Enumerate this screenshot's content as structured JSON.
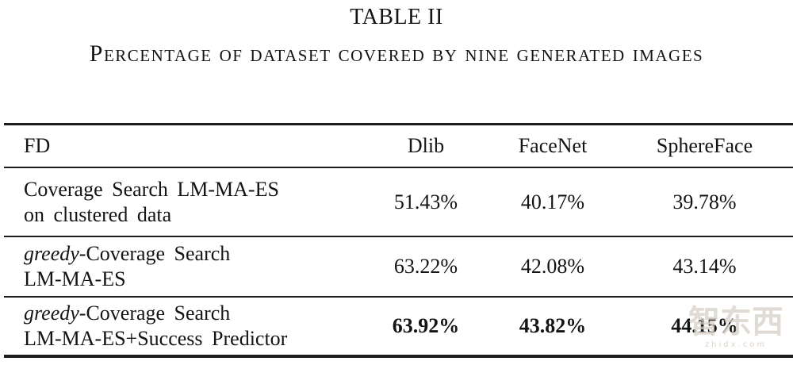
{
  "caption": {
    "title": "TABLE II",
    "subtitle": "Percentage of dataset covered by nine generated images"
  },
  "table": {
    "headers": [
      "FD",
      "Dlib",
      "FaceNet",
      "SphereFace"
    ],
    "rows": [
      {
        "line1_italic": "",
        "line1_rest": "Coverage Search LM-MA-ES",
        "line2": "on clustered data",
        "values": [
          "51.43%",
          "40.17%",
          "39.78%"
        ]
      },
      {
        "line1_italic": "greedy",
        "line1_rest": "-Coverage Search",
        "line2": "LM-MA-ES",
        "values": [
          "63.22%",
          "42.08%",
          "43.14%"
        ]
      },
      {
        "line1_italic": "greedy",
        "line1_rest": "-Coverage Search",
        "line2": "LM-MA-ES+Success Predictor",
        "values": [
          "63.92%",
          "43.82%",
          "44.15%"
        ]
      }
    ]
  },
  "watermark": {
    "text": "智东西",
    "site": "zhidx.com"
  },
  "colors": {
    "background": "#ffffff",
    "text": "#141414",
    "rule": "#1c1c1c",
    "watermark": "#d6d0c6"
  }
}
